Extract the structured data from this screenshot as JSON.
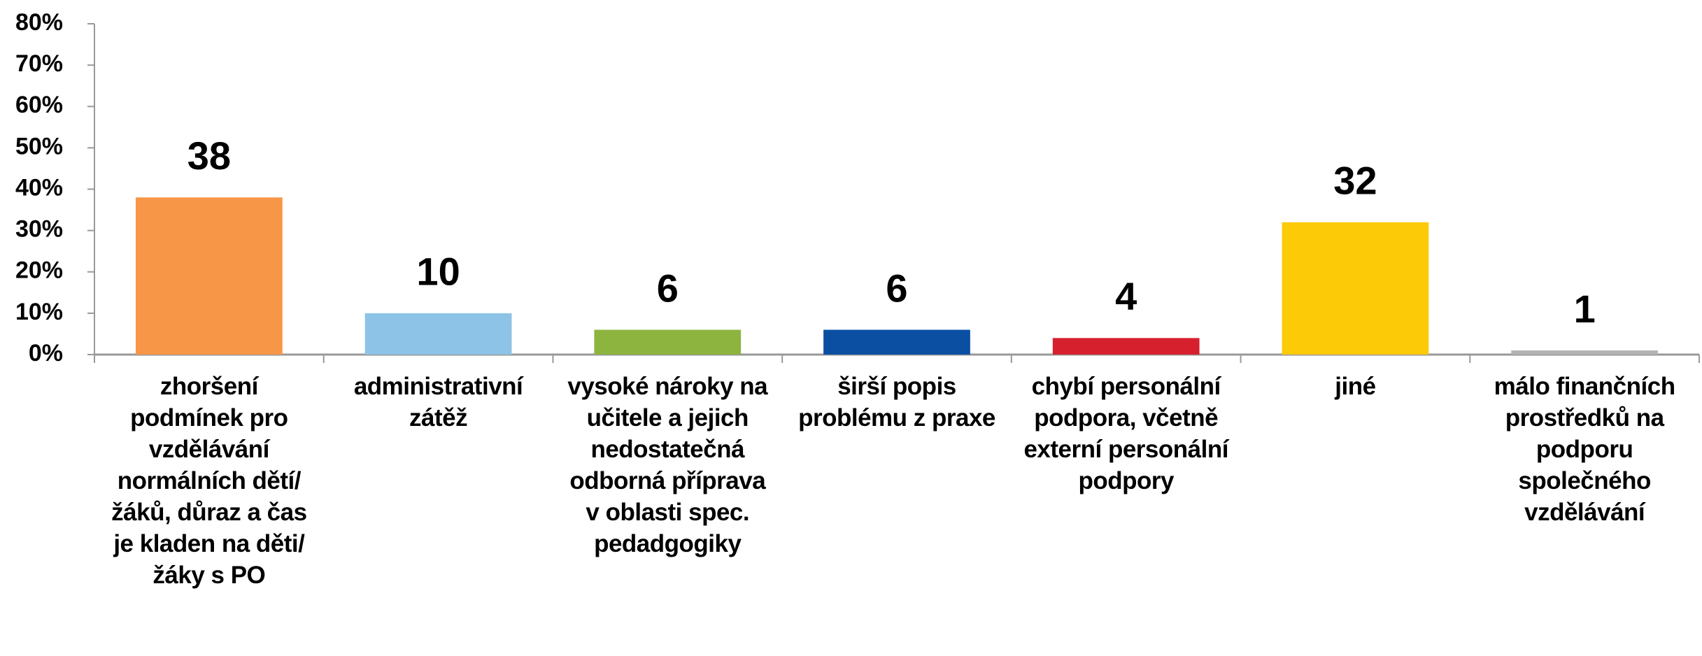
{
  "chart_data": {
    "type": "bar",
    "categories": [
      "zhoršení podmínek pro vzdělávání normálních dětí/žáků, důraz a čas je kladen na děti/žáky s PO",
      "administrativní zátěž",
      "vysoké nároky na učitele a jejich nedostatečná odborná příprava v oblasti spec. pedadgogiky",
      "širší popis problému z praxe",
      "chybí personální podpora, včetně externí personální podpory",
      "jiné",
      "málo finančních prostředků na podporu společného vzdělávání"
    ],
    "values": [
      38,
      10,
      6,
      6,
      4,
      32,
      1
    ],
    "colors": [
      "#f79646",
      "#8dc3e6",
      "#8db43f",
      "#0b4fa3",
      "#d7202e",
      "#fcca07",
      "#b3b3b3"
    ],
    "ylim": [
      0,
      80
    ],
    "yticks": [
      {
        "value": 0,
        "label": "0%"
      },
      {
        "value": 10,
        "label": "10%"
      },
      {
        "value": 20,
        "label": "20%"
      },
      {
        "value": 30,
        "label": "30%"
      },
      {
        "value": 40,
        "label": "40%"
      },
      {
        "value": 50,
        "label": "50%"
      },
      {
        "value": 60,
        "label": "60%"
      },
      {
        "value": 70,
        "label": "70%"
      },
      {
        "value": 80,
        "label": "80%"
      }
    ],
    "grid": false
  }
}
